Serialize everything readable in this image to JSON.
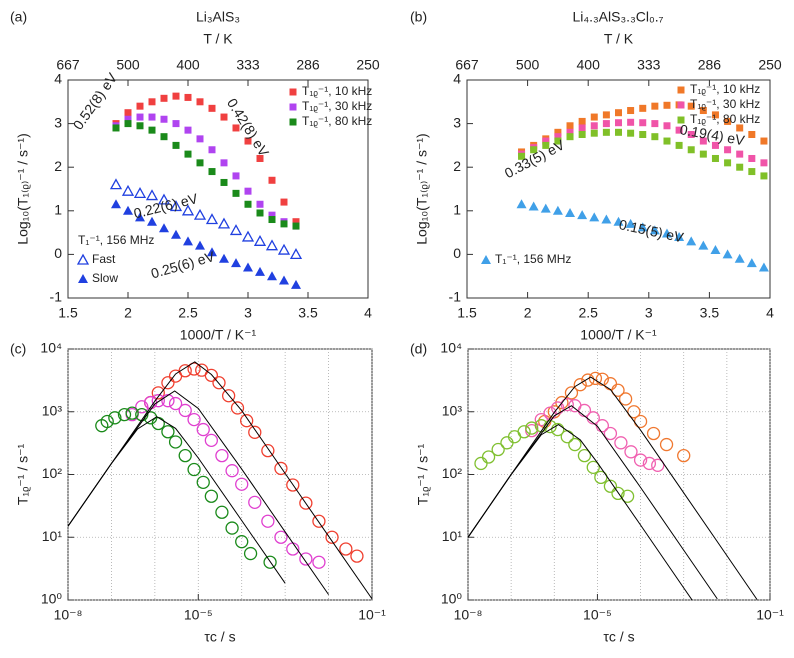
{
  "chart_data": [
    {
      "type": "scatter",
      "panel": "(a)",
      "title": "Li₃AlS₃",
      "xlabel": "1000/T / K⁻¹",
      "ylabel": "Log₁₀(T₁₍ᵨ₎⁻¹ / s⁻¹)",
      "x2label": "T / K",
      "xlim": [
        1.5,
        4
      ],
      "ylim": [
        -1,
        4
      ],
      "xticks": [
        1.5,
        2,
        2.5,
        3,
        3.5,
        4
      ],
      "yticks": [
        -1,
        0,
        1,
        2,
        3,
        4
      ],
      "x2ticks": [
        {
          "value": 1.5,
          "label": "667"
        },
        {
          "value": 2,
          "label": "500"
        },
        {
          "value": 2.5,
          "label": "400"
        },
        {
          "value": 3,
          "label": "333"
        },
        {
          "value": 3.5,
          "label": "286"
        },
        {
          "value": 4,
          "label": "250"
        }
      ],
      "x": [
        1.9,
        2.0,
        2.1,
        2.2,
        2.3,
        2.4,
        2.5,
        2.6,
        2.7,
        2.8,
        2.9,
        3.0,
        3.1,
        3.2,
        3.3,
        3.4
      ],
      "legend_titles": {
        "lower_left": "T₁⁻¹, 156 MHz"
      },
      "series": [
        {
          "name": "T₁ᵨ⁻¹, 10 kHz",
          "color": "#f04040",
          "marker": "square",
          "legend": "upper_right",
          "values": [
            3.0,
            3.25,
            3.4,
            3.5,
            3.58,
            3.63,
            3.6,
            3.5,
            3.35,
            3.15,
            2.9,
            2.6,
            2.2,
            1.7,
            1.2,
            0.75
          ]
        },
        {
          "name": "T₁ᵨ⁻¹, 30 kHz",
          "color": "#b044f0",
          "marker": "square",
          "legend": "upper_right",
          "values": [
            2.95,
            3.1,
            3.15,
            3.15,
            3.1,
            3.0,
            2.85,
            2.65,
            2.4,
            2.1,
            1.8,
            1.45,
            1.15,
            0.9,
            0.75,
            0.65
          ]
        },
        {
          "name": "T₁ᵨ⁻¹, 80 kHz",
          "color": "#1a8a1a",
          "marker": "square",
          "legend": "upper_right",
          "values": [
            2.9,
            3.0,
            2.95,
            2.85,
            2.7,
            2.5,
            2.3,
            2.1,
            1.9,
            1.65,
            1.4,
            1.15,
            0.95,
            0.8,
            0.7,
            0.65
          ]
        },
        {
          "name": "Fast",
          "color": "#2040e0",
          "marker": "triangle-open",
          "legend": "lower_left",
          "values": [
            1.6,
            1.45,
            1.4,
            1.35,
            1.25,
            1.1,
            1.0,
            0.9,
            0.8,
            0.7,
            0.55,
            0.4,
            0.3,
            0.2,
            0.1,
            0.0
          ]
        },
        {
          "name": "Slow",
          "color": "#2040e0",
          "marker": "triangle",
          "legend": "lower_left",
          "values": [
            1.15,
            1.0,
            0.85,
            0.75,
            0.6,
            0.45,
            0.3,
            0.2,
            0.05,
            -0.1,
            -0.2,
            -0.3,
            -0.4,
            -0.5,
            -0.6,
            -0.7
          ]
        }
      ],
      "annotations": [
        "0.52(8) eV",
        "0.42(8) eV",
        "0.22(6) eV",
        "0.25(6) eV"
      ]
    },
    {
      "type": "scatter",
      "panel": "(b)",
      "title": "Li₄.₃AlS₃.₃Cl₀.₇",
      "xlabel": "1000/T / K⁻¹",
      "ylabel": "Log₁₀(T₁₍ᵨ₎⁻¹ / s⁻¹)",
      "x2label": "T / K",
      "xlim": [
        1.5,
        4
      ],
      "ylim": [
        -1,
        4
      ],
      "xticks": [
        1.5,
        2,
        2.5,
        3,
        3.5,
        4
      ],
      "yticks": [
        -1,
        0,
        1,
        2,
        3,
        4
      ],
      "x2ticks": [
        {
          "value": 1.5,
          "label": "667"
        },
        {
          "value": 2,
          "label": "500"
        },
        {
          "value": 2.5,
          "label": "400"
        },
        {
          "value": 3,
          "label": "333"
        },
        {
          "value": 3.5,
          "label": "286"
        },
        {
          "value": 4,
          "label": "250"
        }
      ],
      "x": [
        1.95,
        2.05,
        2.15,
        2.25,
        2.35,
        2.45,
        2.55,
        2.65,
        2.75,
        2.85,
        2.95,
        3.05,
        3.15,
        3.25,
        3.35,
        3.45,
        3.55,
        3.65,
        3.75,
        3.85,
        3.95
      ],
      "series": [
        {
          "name": "T₁ᵨ⁻¹, 10 kHz",
          "color": "#f07828",
          "marker": "square",
          "legend": "upper_right",
          "values": [
            2.35,
            2.5,
            2.65,
            2.8,
            2.95,
            3.05,
            3.15,
            3.2,
            3.25,
            3.3,
            3.35,
            3.4,
            3.42,
            3.43,
            3.4,
            3.3,
            3.2,
            3.05,
            2.9,
            2.75,
            2.6
          ]
        },
        {
          "name": "T₁ᵨ⁻¹, 30 kHz",
          "color": "#f054a8",
          "marker": "square",
          "legend": "upper_right",
          "values": [
            2.3,
            2.45,
            2.6,
            2.7,
            2.8,
            2.9,
            2.95,
            3.0,
            3.02,
            3.03,
            3.02,
            3.0,
            2.95,
            2.85,
            2.75,
            2.6,
            2.5,
            2.4,
            2.3,
            2.2,
            2.1
          ]
        },
        {
          "name": "T₁ᵨ⁻¹, 80 kHz",
          "color": "#80c028",
          "marker": "square",
          "legend": "upper_right",
          "values": [
            2.25,
            2.4,
            2.5,
            2.6,
            2.7,
            2.75,
            2.78,
            2.8,
            2.8,
            2.78,
            2.75,
            2.7,
            2.6,
            2.5,
            2.4,
            2.3,
            2.2,
            2.1,
            2.0,
            1.9,
            1.8
          ]
        },
        {
          "name": "T₁⁻¹, 156 MHz",
          "color": "#40a0e8",
          "marker": "triangle",
          "legend": "lower_left",
          "values": [
            1.15,
            1.1,
            1.05,
            1.0,
            0.95,
            0.9,
            0.85,
            0.8,
            0.75,
            0.7,
            0.62,
            0.55,
            0.48,
            0.4,
            0.3,
            0.2,
            0.1,
            0.0,
            -0.1,
            -0.2,
            -0.3
          ]
        }
      ],
      "annotations": [
        "0.19(4) eV",
        "0.33(5) eV",
        "0.15(5) eV"
      ]
    },
    {
      "type": "scatter",
      "panel": "(c)",
      "xlabel": "τc / s",
      "ylabel": "T₁ᵨ⁻¹ / s⁻¹",
      "xscale": "log",
      "yscale": "log",
      "xlim": [
        1e-08,
        0.1
      ],
      "ylim": [
        1,
        10000
      ],
      "xticks": [
        {
          "value": 1e-08,
          "label": "10⁻⁸"
        },
        {
          "value": 1e-05,
          "label": "10⁻⁵"
        },
        {
          "value": 0.1,
          "label": "10⁻¹"
        }
      ],
      "yticks": [
        {
          "value": 1,
          "label": "10⁰"
        },
        {
          "value": 10,
          "label": "10¹"
        },
        {
          "value": 100,
          "label": "10²"
        },
        {
          "value": 1000,
          "label": "10³"
        },
        {
          "value": 10000,
          "label": "10⁴"
        }
      ],
      "xgrid": [
        1e-08,
        1e-07,
        1e-06,
        1e-05,
        0.0001,
        0.001,
        0.01,
        0.1
      ],
      "ygrid": [
        1,
        10,
        100,
        1000,
        10000
      ],
      "series": [
        {
          "color": "#f04030",
          "marker": "circle-open",
          "x": [
            8e-07,
            1.2e-06,
            2e-06,
            3e-06,
            5e-06,
            8e-06,
            1.2e-05,
            2e-05,
            3e-05,
            5e-05,
            8e-05,
            0.00013,
            0.0002,
            0.0004,
            0.0008,
            0.0015,
            0.003,
            0.006,
            0.012,
            0.025,
            0.045
          ],
          "values": [
            1400,
            2000,
            2900,
            3700,
            4500,
            4800,
            4600,
            3800,
            2900,
            1800,
            1150,
            720,
            470,
            240,
            125,
            68,
            35,
            18,
            10,
            6.5,
            5
          ]
        },
        {
          "color": "#e040d0",
          "marker": "circle-open",
          "x": [
            3e-07,
            5e-07,
            8e-07,
            1.2e-06,
            2e-06,
            3e-06,
            5e-06,
            8e-06,
            1.3e-05,
            2e-05,
            3.5e-05,
            6e-05,
            0.0001,
            0.0002,
            0.0004,
            0.0008,
            0.0015,
            0.003,
            0.006
          ],
          "values": [
            900,
            1200,
            1400,
            1500,
            1500,
            1350,
            1050,
            750,
            520,
            350,
            200,
            115,
            70,
            36,
            18,
            10,
            6.5,
            4.5,
            4
          ]
        },
        {
          "color": "#1a8a1a",
          "marker": "circle-open",
          "x": [
            6e-08,
            8e-08,
            1.2e-07,
            2e-07,
            3e-07,
            5e-07,
            8e-07,
            1.2e-06,
            2e-06,
            3e-06,
            5e-06,
            8e-06,
            1.3e-05,
            2e-05,
            3.5e-05,
            6e-05,
            0.0001,
            0.00016,
            0.00045
          ],
          "values": [
            600,
            700,
            800,
            900,
            950,
            900,
            800,
            650,
            480,
            330,
            200,
            120,
            75,
            45,
            25,
            14,
            8.5,
            5.5,
            4
          ]
        },
        {
          "color": "#000000",
          "line": true,
          "x": [
            1e-08,
            1e-07,
            1e-06,
            3e-06,
            8.3e-06,
            2e-05,
            0.0001,
            0.001,
            0.01,
            0.1
          ],
          "values": [
            15,
            150,
            1479,
            3993,
            6250,
            3929,
            1042,
            104,
            10.4,
            1.04
          ]
        },
        {
          "color": "#000000",
          "line": true,
          "x": [
            1e-08,
            1e-07,
            1e-06,
            2.86e-06,
            1e-05,
            0.0001,
            0.001,
            0.01
          ],
          "values": [
            15,
            150,
            1336,
            2143,
            1128,
            122,
            12.2,
            1.22
          ]
        },
        {
          "color": "#000000",
          "line": true,
          "x": [
            1e-08,
            1e-07,
            4e-07,
            1.11e-06,
            3e-06,
            1e-05,
            0.0001,
            0.001
          ],
          "values": [
            15,
            149,
            531,
            833,
            543,
            183,
            18.5,
            1.85
          ]
        }
      ]
    },
    {
      "type": "scatter",
      "panel": "(d)",
      "xlabel": "τc / s",
      "ylabel": "T₁ᵨ⁻¹ / s⁻¹",
      "xscale": "log",
      "yscale": "log",
      "xlim": [
        1e-08,
        0.1
      ],
      "ylim": [
        1,
        10000
      ],
      "xticks": [
        {
          "value": 1e-08,
          "label": "10⁻⁸"
        },
        {
          "value": 1e-05,
          "label": "10⁻⁵"
        },
        {
          "value": 0.1,
          "label": "10⁻¹"
        }
      ],
      "yticks": [
        {
          "value": 1,
          "label": "10⁰"
        },
        {
          "value": 10,
          "label": "10¹"
        },
        {
          "value": 100,
          "label": "10²"
        },
        {
          "value": 1000,
          "label": "10³"
        },
        {
          "value": 10000,
          "label": "10⁴"
        }
      ],
      "xgrid": [
        1e-08,
        1e-07,
        1e-06,
        1e-05,
        0.0001,
        0.001,
        0.01,
        0.1
      ],
      "ygrid": [
        1,
        10,
        100,
        1000,
        10000
      ],
      "series": [
        {
          "color": "#f07830",
          "marker": "circle-open",
          "x": [
            6e-07,
            1e-06,
            1.5e-06,
            2.5e-06,
            4e-06,
            6e-06,
            9e-06,
            1.3e-05,
            2e-05,
            3e-05,
            4.5e-05,
            7e-05,
            0.0001,
            0.0002,
            0.0004,
            0.001
          ],
          "values": [
            700,
            1000,
            1400,
            2000,
            2700,
            3200,
            3400,
            3300,
            2800,
            2200,
            1600,
            1000,
            700,
            450,
            300,
            200
          ]
        },
        {
          "color": "#f060b0",
          "marker": "circle-open",
          "x": [
            3e-07,
            5e-07,
            8e-07,
            1.2e-06,
            2e-06,
            3e-06,
            5e-06,
            8e-06,
            1.3e-05,
            2e-05,
            3.5e-05,
            6e-05,
            0.0001,
            0.00016,
            0.00025
          ],
          "values": [
            500,
            750,
            950,
            1150,
            1300,
            1250,
            1050,
            800,
            600,
            450,
            320,
            230,
            170,
            150,
            140
          ]
        },
        {
          "color": "#80c030",
          "marker": "circle-open",
          "x": [
            2e-08,
            3e-08,
            5e-08,
            8e-08,
            1.2e-07,
            2e-07,
            3e-07,
            5e-07,
            8e-07,
            1.2e-06,
            2e-06,
            3e-06,
            5e-06,
            8e-06,
            1.2e-05,
            2e-05,
            3e-05,
            5e-05
          ],
          "values": [
            150,
            190,
            250,
            320,
            400,
            480,
            550,
            600,
            580,
            520,
            400,
            300,
            200,
            130,
            90,
            65,
            50,
            45
          ]
        },
        {
          "color": "#000000",
          "line": true,
          "x": [
            1e-08,
            1e-07,
            1e-06,
            3e-06,
            7e-06,
            2e-05,
            0.0001,
            0.001,
            0.01,
            0.05
          ],
          "values": [
            10,
            100,
            981,
            2514,
            3571,
            2262,
            508,
            51,
            5.1,
            1.02
          ]
        },
        {
          "color": "#000000",
          "line": true,
          "x": [
            1e-08,
            1e-07,
            1e-06,
            2.5e-06,
            1e-05,
            0.0001,
            0.001,
            0.006
          ],
          "values": [
            10,
            100,
            862,
            1250,
            588,
            62,
            6.25,
            1.04
          ]
        },
        {
          "color": "#000000",
          "line": true,
          "x": [
            1e-08,
            1e-07,
            5e-07,
            1.25e-06,
            4e-06,
            1e-05,
            0.0001,
            0.001,
            0.0016
          ],
          "values": [
            10,
            99.4,
            431,
            625,
            356,
            154,
            15.6,
            1.56,
            0.98
          ]
        }
      ]
    }
  ]
}
